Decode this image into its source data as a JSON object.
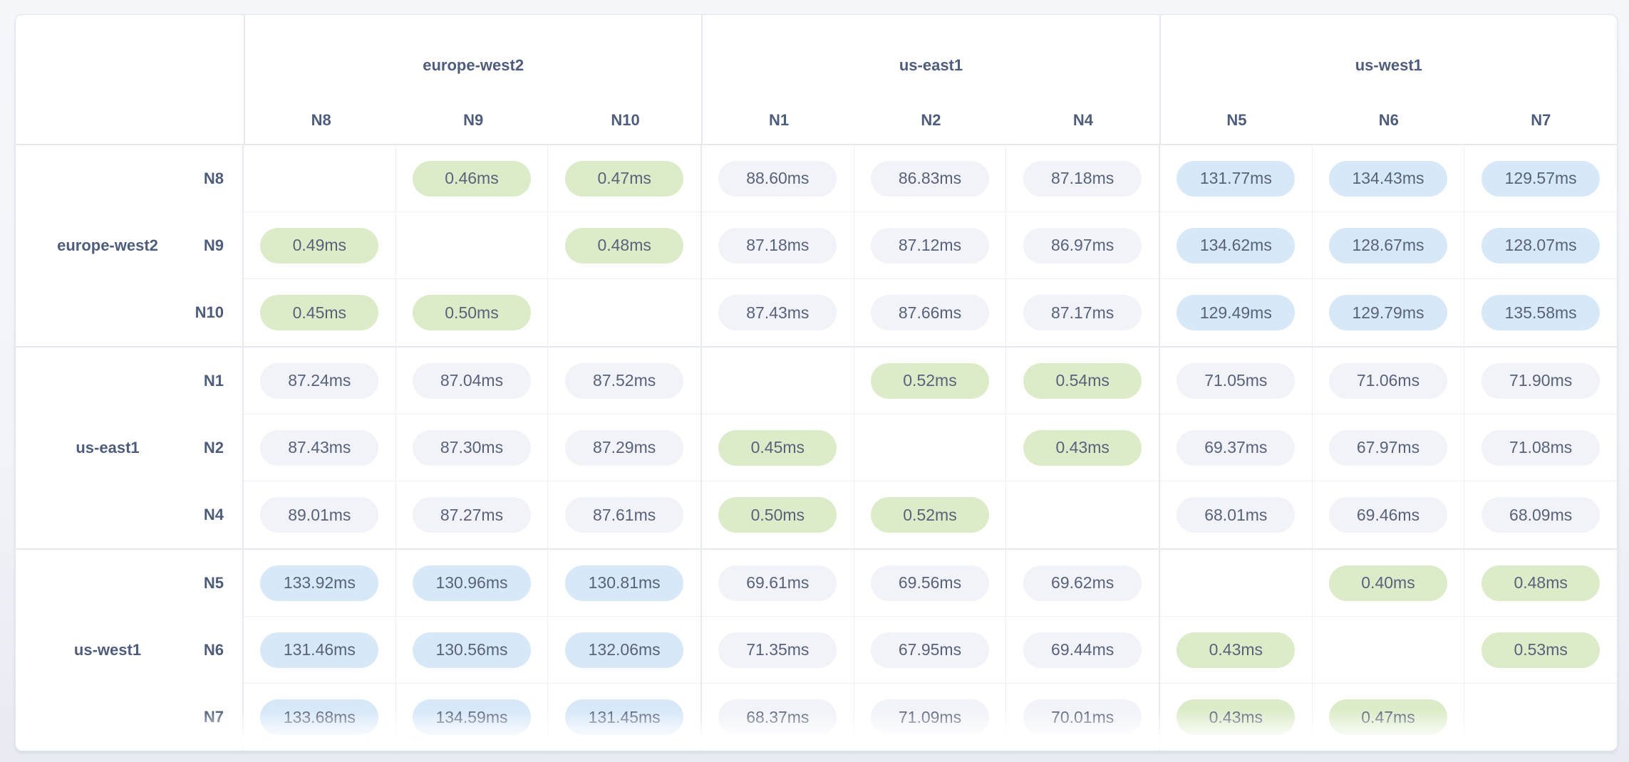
{
  "chart_data": {
    "type": "heatmap",
    "unit": "ms",
    "column_groups": [
      {
        "region": "europe-west2",
        "nodes": [
          "N8",
          "N9",
          "N10"
        ]
      },
      {
        "region": "us-east1",
        "nodes": [
          "N1",
          "N2",
          "N4"
        ]
      },
      {
        "region": "us-west1",
        "nodes": [
          "N5",
          "N6",
          "N7"
        ]
      }
    ],
    "row_groups": [
      {
        "region": "europe-west2",
        "nodes": [
          "N8",
          "N9",
          "N10"
        ]
      },
      {
        "region": "us-east1",
        "nodes": [
          "N1",
          "N2",
          "N4"
        ]
      },
      {
        "region": "us-west1",
        "nodes": [
          "N5",
          "N6",
          "N7"
        ]
      }
    ],
    "columns": [
      "N8",
      "N9",
      "N10",
      "N1",
      "N2",
      "N4",
      "N5",
      "N6",
      "N7"
    ],
    "rows": [
      "N8",
      "N9",
      "N10",
      "N1",
      "N2",
      "N4",
      "N5",
      "N6",
      "N7"
    ],
    "cell_labels": [
      [
        null,
        "0.46ms",
        "0.47ms",
        "88.60ms",
        "86.83ms",
        "87.18ms",
        "131.77ms",
        "134.43ms",
        "129.57ms"
      ],
      [
        "0.49ms",
        null,
        "0.48ms",
        "87.18ms",
        "87.12ms",
        "86.97ms",
        "134.62ms",
        "128.67ms",
        "128.07ms"
      ],
      [
        "0.45ms",
        "0.50ms",
        null,
        "87.43ms",
        "87.66ms",
        "87.17ms",
        "129.49ms",
        "129.79ms",
        "135.58ms"
      ],
      [
        "87.24ms",
        "87.04ms",
        "87.52ms",
        null,
        "0.52ms",
        "0.54ms",
        "71.05ms",
        "71.06ms",
        "71.90ms"
      ],
      [
        "87.43ms",
        "87.30ms",
        "87.29ms",
        "0.45ms",
        null,
        "0.43ms",
        "69.37ms",
        "67.97ms",
        "71.08ms"
      ],
      [
        "89.01ms",
        "87.27ms",
        "87.61ms",
        "0.50ms",
        "0.52ms",
        null,
        "68.01ms",
        "69.46ms",
        "68.09ms"
      ],
      [
        "133.92ms",
        "130.96ms",
        "130.81ms",
        "69.61ms",
        "69.56ms",
        "69.62ms",
        null,
        "0.40ms",
        "0.48ms"
      ],
      [
        "131.46ms",
        "130.56ms",
        "132.06ms",
        "71.35ms",
        "67.95ms",
        "69.44ms",
        "0.43ms",
        null,
        "0.53ms"
      ],
      [
        "133.68ms",
        "134.59ms",
        "131.45ms",
        "68.37ms",
        "71.09ms",
        "70.01ms",
        "0.43ms",
        "0.47ms",
        null
      ]
    ],
    "matrix_ms": [
      [
        null,
        0.46,
        0.47,
        88.6,
        86.83,
        87.18,
        131.77,
        134.43,
        129.57
      ],
      [
        0.49,
        null,
        0.48,
        87.18,
        87.12,
        86.97,
        134.62,
        128.67,
        128.07
      ],
      [
        0.45,
        0.5,
        null,
        87.43,
        87.66,
        87.17,
        129.49,
        129.79,
        135.58
      ],
      [
        87.24,
        87.04,
        87.52,
        null,
        0.52,
        0.54,
        71.05,
        71.06,
        71.9
      ],
      [
        87.43,
        87.3,
        87.29,
        0.45,
        null,
        0.43,
        69.37,
        67.97,
        71.08
      ],
      [
        89.01,
        87.27,
        87.61,
        0.5,
        0.52,
        null,
        68.01,
        69.46,
        68.09
      ],
      [
        133.92,
        130.96,
        130.81,
        69.61,
        69.56,
        69.62,
        null,
        0.4,
        0.48
      ],
      [
        131.46,
        130.56,
        132.06,
        71.35,
        67.95,
        69.44,
        0.43,
        null,
        0.53
      ],
      [
        133.68,
        134.59,
        131.45,
        68.37,
        71.09,
        70.01,
        0.43,
        0.47,
        null
      ]
    ],
    "tiers": {
      "low_max_ms": 1,
      "mid_max_ms": 100
    }
  },
  "colors": {
    "low_latency_fill": "#dcecc8",
    "mid_latency_fill": "#f1f3f8",
    "high_latency_fill": "#d7e8f8",
    "header_text": "#4e5d7c",
    "value_text": "#59627b"
  }
}
